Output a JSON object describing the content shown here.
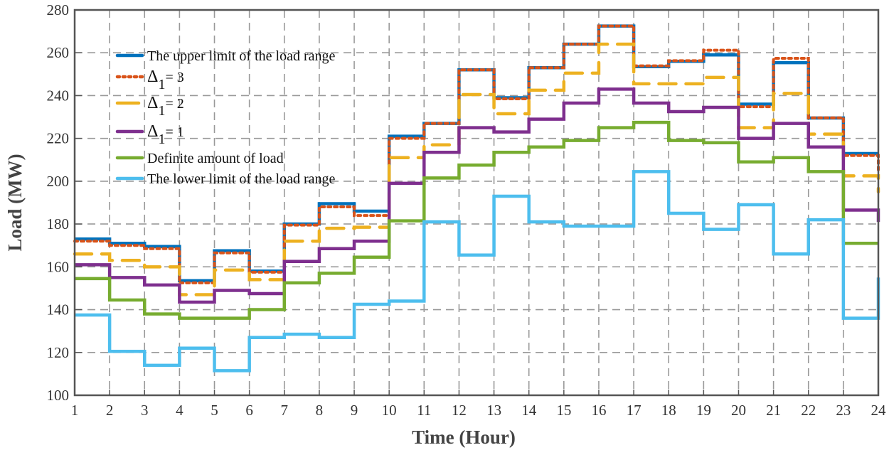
{
  "chart_data": {
    "type": "line",
    "step": true,
    "title": "",
    "xlabel": "Time (Hour)",
    "ylabel": "Load (MW)",
    "xlim": [
      1,
      24
    ],
    "ylim": [
      100,
      280
    ],
    "xticks": [
      1,
      2,
      3,
      4,
      5,
      6,
      7,
      8,
      9,
      10,
      11,
      12,
      13,
      14,
      15,
      16,
      17,
      18,
      19,
      20,
      21,
      22,
      23,
      24
    ],
    "yticks": [
      100,
      120,
      140,
      160,
      180,
      200,
      220,
      240,
      260,
      280
    ],
    "grid": true,
    "legend_placement": "top-left",
    "x": [
      1,
      2,
      3,
      4,
      5,
      6,
      7,
      8,
      9,
      10,
      11,
      12,
      13,
      14,
      15,
      16,
      17,
      18,
      19,
      20,
      21,
      22,
      23,
      24
    ],
    "series": [
      {
        "name": "The upper limit of the load range",
        "color": "#0072BD",
        "style": "solid",
        "values": [
          173,
          171,
          169.5,
          153.5,
          167.5,
          158,
          180,
          189.5,
          186,
          221,
          227,
          252,
          239,
          253,
          264,
          272.5,
          253.5,
          256,
          259,
          236,
          255.4,
          229.5,
          212.9,
          212.9
        ]
      },
      {
        "name": "Δ1= 3",
        "color": "#D95319",
        "style": "dotted",
        "values": [
          172,
          170,
          168.5,
          152.5,
          166.5,
          157.5,
          179.5,
          188,
          184,
          220,
          227,
          252,
          238.5,
          253,
          264,
          272.5,
          253.9,
          256.3,
          261.2,
          234.8,
          257.4,
          229.6,
          212,
          205
        ]
      },
      {
        "name": "Δ1= 2",
        "color": "#EDB120",
        "style": "dashed",
        "values": [
          166,
          163,
          160,
          147,
          158.5,
          154,
          172,
          178,
          178.5,
          211,
          217,
          240.5,
          231.5,
          242.5,
          250.5,
          264,
          245.5,
          245.5,
          248.5,
          225,
          241,
          222,
          202.5,
          195
        ]
      },
      {
        "name": "Δ1= 1",
        "color": "#7E2F8E",
        "style": "solid",
        "values": [
          161,
          155,
          151.5,
          143.5,
          149,
          147.5,
          162.5,
          168.5,
          172,
          199,
          213.5,
          225,
          223,
          229,
          236.5,
          243,
          236.5,
          232.5,
          234.5,
          220,
          227,
          216,
          186.5,
          181
        ]
      },
      {
        "name": "Definite amount of load",
        "color": "#77AC30",
        "style": "solid",
        "values": [
          154.5,
          144.5,
          138,
          136,
          136,
          140,
          152.5,
          157,
          164.5,
          181.5,
          201.5,
          207.5,
          213.5,
          216,
          219,
          225,
          227.5,
          219,
          218,
          209,
          211,
          204.5,
          171,
          171
        ]
      },
      {
        "name": "The lower limit of the load range",
        "color": "#4DBEEE",
        "style": "solid",
        "values": [
          137.5,
          120.5,
          114,
          122,
          111.5,
          127,
          128.5,
          127,
          142.5,
          144,
          181,
          165.5,
          193,
          181,
          179,
          179,
          204.5,
          185,
          177.5,
          189,
          166,
          182,
          136,
          155
        ]
      }
    ]
  }
}
